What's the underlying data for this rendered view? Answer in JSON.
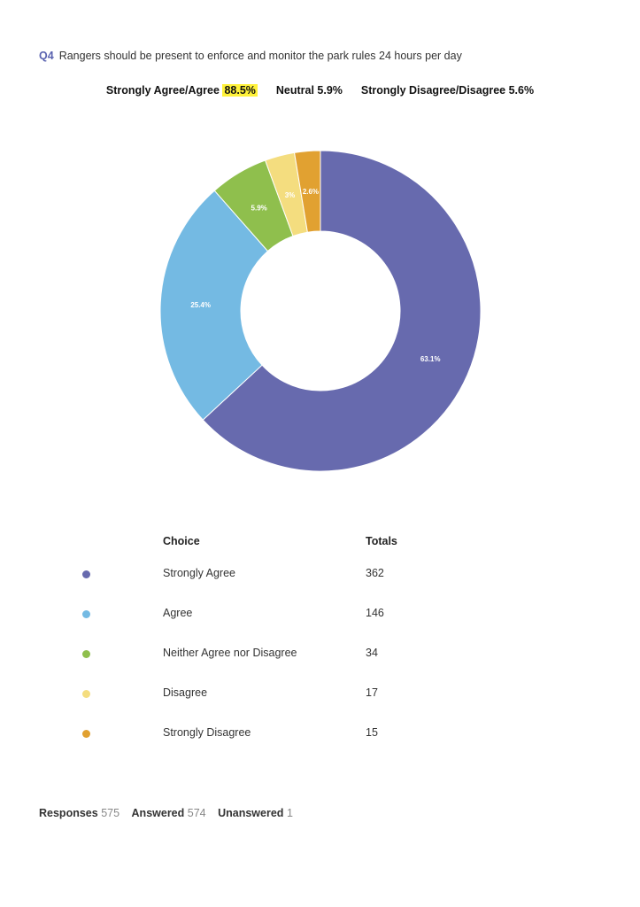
{
  "question": {
    "number": "Q4",
    "text": "Rangers should be present to enforce and monitor the park rules 24 hours per day"
  },
  "summary": {
    "agree_label": "Strongly Agree/Agree",
    "agree_value": "88.5%",
    "neutral_text": "Neutral 5.9%",
    "disagree_text": "Strongly Disagree/Disagree 5.6%"
  },
  "chart_data": {
    "type": "pie",
    "donut": true,
    "title": "",
    "categories": [
      "Strongly Agree",
      "Agree",
      "Neither Agree nor Disagree",
      "Disagree",
      "Strongly Disagree"
    ],
    "values": [
      63.1,
      25.4,
      5.9,
      3.0,
      2.6
    ],
    "data_labels": [
      "63.1%",
      "25.4%",
      "5.9%",
      "3%",
      "2.6%"
    ],
    "colors": [
      "#676aae",
      "#74bae3",
      "#8fbf4d",
      "#f4dd7f",
      "#e1a131"
    ],
    "start": "top",
    "direction": "clockwise"
  },
  "table": {
    "headers": {
      "choice": "Choice",
      "totals": "Totals"
    },
    "rows": [
      {
        "choice": "Strongly Agree",
        "total": "362",
        "color": "#676aae"
      },
      {
        "choice": "Agree",
        "total": "146",
        "color": "#74bae3"
      },
      {
        "choice": "Neither Agree nor Disagree",
        "total": "34",
        "color": "#8fbf4d"
      },
      {
        "choice": "Disagree",
        "total": "17",
        "color": "#f4dd7f"
      },
      {
        "choice": "Strongly Disagree",
        "total": "15",
        "color": "#e1a131"
      }
    ]
  },
  "footer": {
    "responses_label": "Responses",
    "responses_value": "575",
    "answered_label": "Answered",
    "answered_value": "574",
    "unanswered_label": "Unanswered",
    "unanswered_value": "1"
  }
}
